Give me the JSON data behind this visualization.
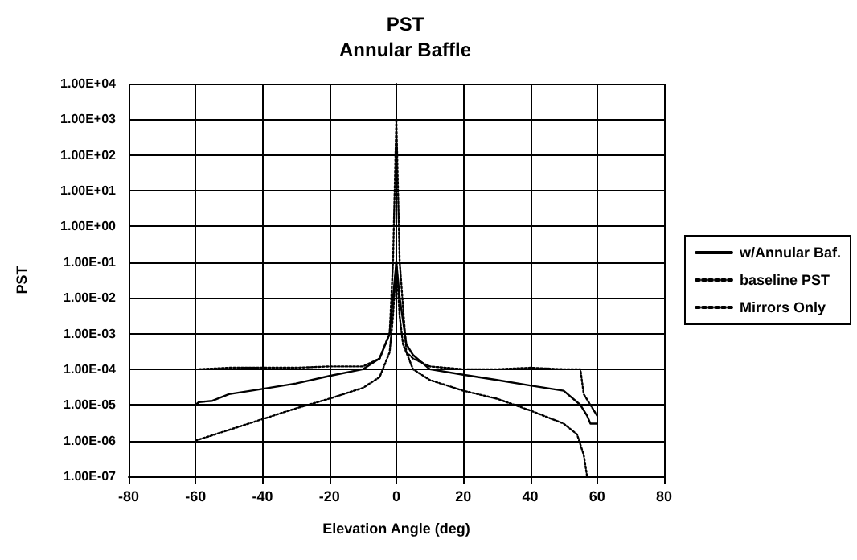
{
  "chart_data": {
    "type": "line",
    "title": "PST",
    "subtitle": "Annular Baffle",
    "xlabel": "Elevation Angle (deg)",
    "ylabel": "PST",
    "log": "y",
    "grid": true,
    "legend": "right",
    "marker": "none",
    "xlim": [
      -80,
      80
    ],
    "xticks": [
      -80,
      -60,
      -40,
      -20,
      0,
      20,
      40,
      60,
      80
    ],
    "ylim": [
      1e-07,
      10000
    ],
    "yticks": [
      {
        "value": 1e-07,
        "label": "1.00E-07"
      },
      {
        "value": 1e-06,
        "label": "1.00E-06"
      },
      {
        "value": 1e-05,
        "label": "1.00E-05"
      },
      {
        "value": 0.0001,
        "label": "1.00E-04"
      },
      {
        "value": 0.001,
        "label": "1.00E-03"
      },
      {
        "value": 0.01,
        "label": "1.00E-02"
      },
      {
        "value": 0.1,
        "label": "1.00E-01"
      },
      {
        "value": 1,
        "label": "1.00E+00"
      },
      {
        "value": 10,
        "label": "1.00E+01"
      },
      {
        "value": 100,
        "label": "1.00E+02"
      },
      {
        "value": 1000,
        "label": "1.00E+03"
      },
      {
        "value": 10000,
        "label": "1.00E+04"
      }
    ],
    "series": [
      {
        "name": "w/Annular Baf.",
        "color": "#000000",
        "line_style": "solid",
        "x": [
          -60,
          -59,
          -55,
          -50,
          -40,
          -30,
          -20,
          -10,
          -5,
          -2,
          -1,
          0,
          1,
          3,
          5,
          10,
          20,
          30,
          40,
          50,
          55,
          57,
          58,
          60
        ],
        "values": [
          1e-05,
          1.2e-05,
          1.3e-05,
          2e-05,
          2.8e-05,
          4e-05,
          6.5e-05,
          0.0001,
          0.0002,
          0.001,
          0.01,
          0.1,
          0.01,
          0.0005,
          0.00025,
          0.0001,
          7e-05,
          5e-05,
          3.5e-05,
          2.5e-05,
          1e-05,
          5e-06,
          3e-06,
          3e-06
        ]
      },
      {
        "name": "baseline PST",
        "color": "#000000",
        "line_style": "dotted",
        "x": [
          -59,
          -50,
          -40,
          -30,
          -20,
          -10,
          -5,
          -2,
          -1,
          0,
          1,
          3,
          5,
          10,
          20,
          30,
          40,
          50,
          55,
          56,
          58,
          60
        ],
        "values": [
          0.0001,
          0.00011,
          0.00011,
          0.00011,
          0.00012,
          0.00012,
          0.0002,
          0.001,
          0.1,
          1000,
          0.1,
          0.0003,
          0.0002,
          0.00012,
          0.0001,
          0.0001,
          0.00011,
          0.0001,
          0.0001,
          2e-05,
          1e-05,
          5e-06
        ]
      },
      {
        "name": "Mirrors Only",
        "color": "#000000",
        "line_style": "dotted",
        "x": [
          -60,
          -50,
          -40,
          -30,
          -20,
          -10,
          -5,
          -2,
          -1,
          0,
          1,
          2,
          5,
          10,
          20,
          30,
          40,
          50,
          54,
          56,
          57
        ],
        "values": [
          1e-06,
          2e-06,
          4e-06,
          8e-06,
          1.5e-05,
          3e-05,
          6e-05,
          0.0003,
          0.003,
          0.1,
          0.003,
          0.0005,
          0.0001,
          5e-05,
          2.5e-05,
          1.5e-05,
          7e-06,
          3e-06,
          1.5e-06,
          4e-07,
          1e-07
        ]
      }
    ]
  }
}
